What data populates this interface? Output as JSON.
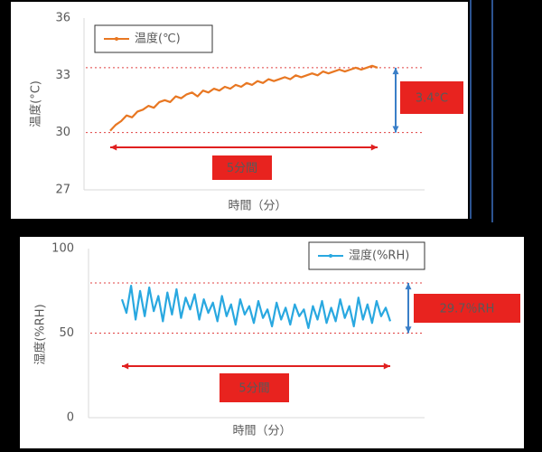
{
  "chart_data": [
    {
      "type": "line",
      "ylabel": "温度(°C)",
      "xlabel": "時間（分）",
      "ylim": [
        27,
        36
      ],
      "yticks": [
        27,
        30,
        33,
        36
      ],
      "grid": false,
      "reference_lines": [
        33.4,
        30
      ],
      "annotations": [
        "3.4°C",
        "5分間"
      ],
      "series": [
        {
          "name": "温度(℃)",
          "color": "#e87722",
          "values": [
            30.1,
            30.4,
            30.6,
            30.9,
            30.8,
            31.1,
            31.2,
            31.4,
            31.3,
            31.6,
            31.7,
            31.6,
            31.9,
            31.8,
            32.0,
            32.1,
            31.9,
            32.2,
            32.1,
            32.3,
            32.2,
            32.4,
            32.3,
            32.5,
            32.4,
            32.6,
            32.5,
            32.7,
            32.6,
            32.8,
            32.7,
            32.8,
            32.9,
            32.8,
            33.0,
            32.9,
            33.0,
            33.1,
            33.0,
            33.2,
            33.1,
            33.2,
            33.3,
            33.2,
            33.3,
            33.4,
            33.3,
            33.4,
            33.5,
            33.4
          ]
        }
      ]
    },
    {
      "type": "line",
      "ylabel": "湿度(%RH)",
      "xlabel": "時間（分）",
      "ylim": [
        0,
        100
      ],
      "yticks": [
        0,
        50,
        100
      ],
      "grid": false,
      "reference_lines": [
        79.7,
        50
      ],
      "annotations": [
        "29.7％RH",
        "5分間"
      ],
      "series": [
        {
          "name": "湿度(%RH)",
          "color": "#29a8e0",
          "values": [
            70,
            62,
            78,
            58,
            75,
            60,
            77,
            63,
            72,
            57,
            74,
            61,
            76,
            59,
            71,
            64,
            73,
            58,
            70,
            62,
            68,
            57,
            72,
            60,
            67,
            55,
            70,
            61,
            66,
            56,
            69,
            59,
            64,
            54,
            68,
            58,
            65,
            55,
            67,
            60,
            64,
            53,
            66,
            58,
            69,
            56,
            65,
            57,
            70,
            59,
            66,
            54,
            71,
            58,
            67,
            56,
            69,
            60,
            65,
            57
          ]
        }
      ]
    }
  ]
}
